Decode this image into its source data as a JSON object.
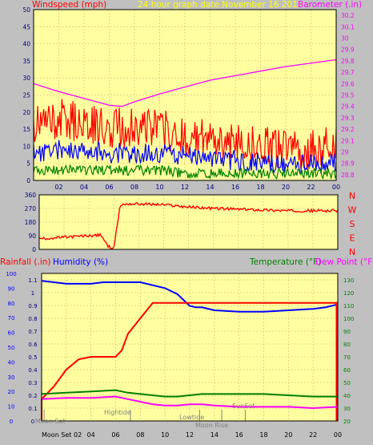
{
  "header": {
    "wind_label": "Windspeed (mph)",
    "graph_title": "24 hour graph date   November 16 2018",
    "baro_label": "Barometer (.in)"
  },
  "colors": {
    "background": "#c0c0c0",
    "plot_bg": "#ffffa0",
    "grid": "#e0c880",
    "wind": "#ff0000",
    "wind_avg": "#0000ff",
    "wind_low": "#008000",
    "barometer": "#ff00ff",
    "direction": "#ff0000",
    "humidity": "#0000ff",
    "rainfall": "#ff0000",
    "temperature": "#008000",
    "dewpoint": "#ff00ff",
    "left_axis_text": "#000080",
    "baro_axis_text": "#ff00ff",
    "temp_axis_text": "#008000",
    "title_text": "#ffff00"
  },
  "bottom": {
    "rain_label": "Rainfall (.in)",
    "humidity_label": "Humidity (%)",
    "temp_label": "Temperature (°F)",
    "dew_label": "Dew Point (°F)",
    "annotations": {
      "moon_set_top": "Moon Set",
      "hightide": "Hightide",
      "lowtide": "Lowtide",
      "sunset": "SunSet",
      "moon_rise": "Moon Rise",
      "moon_set_bottom": "Moon Set 02"
    }
  },
  "chart_data": [
    {
      "type": "line",
      "title": "24 hour graph date   November 16 2018",
      "x_ticks": [
        "02",
        "04",
        "06",
        "08",
        "10",
        "12",
        "14",
        "16",
        "18",
        "20",
        "22",
        "00"
      ],
      "y_left_label": "Windspeed (mph)",
      "y_left_ticks": [
        "0",
        "5",
        "10",
        "15",
        "20",
        "25",
        "30",
        "35",
        "40",
        "45",
        "50"
      ],
      "y_left_lim": [
        0,
        50
      ],
      "y_right_label": "Barometer (.in)",
      "y_right_ticks": [
        "28.8",
        "28.9",
        "29",
        "29.1",
        "29.2",
        "29.3",
        "29.4",
        "29.5",
        "29.6",
        "29.7",
        "29.8",
        "29.9",
        "30",
        "30.1",
        "30.2"
      ],
      "y_right_lim": [
        28.75,
        30.25
      ],
      "grid": true,
      "barometer": {
        "x_hours": [
          0,
          2,
          4,
          6,
          7,
          8,
          10,
          12,
          14,
          16,
          18,
          20,
          22,
          24
        ],
        "values": [
          29.6,
          29.53,
          29.47,
          29.41,
          29.4,
          29.44,
          29.51,
          29.57,
          29.63,
          29.67,
          29.71,
          29.75,
          29.78,
          29.81
        ]
      },
      "wind_bands": {
        "x_hours": [
          0,
          2,
          4,
          6,
          8,
          10,
          12,
          14,
          16,
          18,
          20,
          22,
          24
        ],
        "gust": [
          16,
          18,
          17,
          15,
          16,
          15,
          13,
          12,
          11,
          10,
          9,
          9,
          10
        ],
        "average": [
          8,
          9,
          9,
          8,
          8,
          8,
          7,
          6,
          6,
          5,
          5,
          5,
          5
        ],
        "low": [
          3,
          3,
          3,
          3,
          3,
          3,
          2,
          2,
          2,
          2,
          2,
          2,
          2
        ]
      }
    },
    {
      "type": "line",
      "x_ticks": [
        "02",
        "04",
        "06",
        "08",
        "10",
        "12",
        "14",
        "16",
        "18",
        "20",
        "22",
        "00"
      ],
      "y_ticks": [
        "0",
        "90",
        "180",
        "270",
        "360"
      ],
      "y_lim": [
        0,
        360
      ],
      "y_right_ticks": [
        "N",
        "W",
        "S",
        "E",
        "N"
      ],
      "series": [
        {
          "x_hours": [
            0,
            2,
            4,
            5,
            5.5,
            6,
            6.5,
            7,
            8,
            10,
            12,
            14,
            16,
            18,
            20,
            22,
            24
          ],
          "values": [
            70,
            80,
            90,
            95,
            20,
            10,
            290,
            300,
            300,
            295,
            280,
            270,
            265,
            260,
            255,
            255,
            255
          ]
        }
      ]
    },
    {
      "type": "line",
      "x_ticks": [
        "02",
        "04",
        "06",
        "08",
        "10",
        "12",
        "14",
        "16",
        "18",
        "20",
        "22",
        "00"
      ],
      "y_left_ticks": [
        "0",
        "10",
        "20",
        "30",
        "40",
        "50",
        "60",
        "70",
        "80",
        "90",
        "100"
      ],
      "y_left_lim": [
        0,
        100
      ],
      "y_left2_ticks": [
        "0",
        "0.1",
        "0.2",
        "0.3",
        "0.4",
        "0.5",
        "0.6",
        "0.7",
        "0.8",
        "0.9",
        "1",
        "1.1"
      ],
      "y_left2_lim": [
        0,
        1.15
      ],
      "y_right_ticks": [
        "20",
        "30",
        "40",
        "50",
        "60",
        "70",
        "80",
        "90",
        "100",
        "110",
        "120",
        "130"
      ],
      "y_right_lim": [
        20,
        135
      ],
      "grid": true,
      "series": [
        {
          "name": "Humidity (%)",
          "x_hours": [
            0,
            1,
            2,
            3,
            4,
            5,
            6,
            7,
            8,
            9,
            10,
            11,
            11.5,
            12,
            12.5,
            13,
            14,
            16,
            18,
            20,
            22,
            23,
            24
          ],
          "values": [
            95,
            94,
            93,
            93,
            93,
            94,
            94,
            94,
            94,
            92,
            90,
            86,
            82,
            78,
            77,
            77,
            75,
            74,
            74,
            75,
            76,
            77,
            79
          ]
        },
        {
          "name": "Rainfall (.in)",
          "x_hours": [
            0,
            1,
            2,
            3,
            4,
            5,
            6,
            6.5,
            7,
            8,
            9,
            10,
            12,
            14,
            16,
            18,
            20,
            22,
            23.9
          ],
          "values": [
            0.17,
            0.27,
            0.4,
            0.48,
            0.5,
            0.5,
            0.5,
            0.55,
            0.68,
            0.8,
            0.92,
            0.92,
            0.92,
            0.92,
            0.92,
            0.92,
            0.92,
            0.92,
            0.92
          ]
        },
        {
          "name": "Temperature (°F)",
          "x_hours": [
            0,
            2,
            4,
            6,
            7,
            8,
            9,
            10,
            11,
            12,
            13,
            14,
            16,
            18,
            20,
            22,
            24
          ],
          "values": [
            41,
            42,
            43,
            44,
            42,
            41,
            40,
            39,
            39,
            40,
            41,
            41,
            41,
            41,
            40,
            39,
            39
          ]
        },
        {
          "name": "Dew Point (°F)",
          "x_hours": [
            0,
            2,
            4,
            6,
            7,
            8,
            9,
            10,
            11,
            12,
            13,
            14,
            16,
            18,
            20,
            22,
            24
          ],
          "values": [
            37,
            38,
            38,
            39,
            37,
            35,
            33,
            32,
            32,
            33,
            33,
            32,
            31,
            31,
            31,
            30,
            31
          ]
        }
      ],
      "events_hours": {
        "moon_set_top": 0.2,
        "hightide": 7.2,
        "lowtide": 12.8,
        "sunset": 16.5,
        "moon_rise": 14.6
      }
    }
  ]
}
